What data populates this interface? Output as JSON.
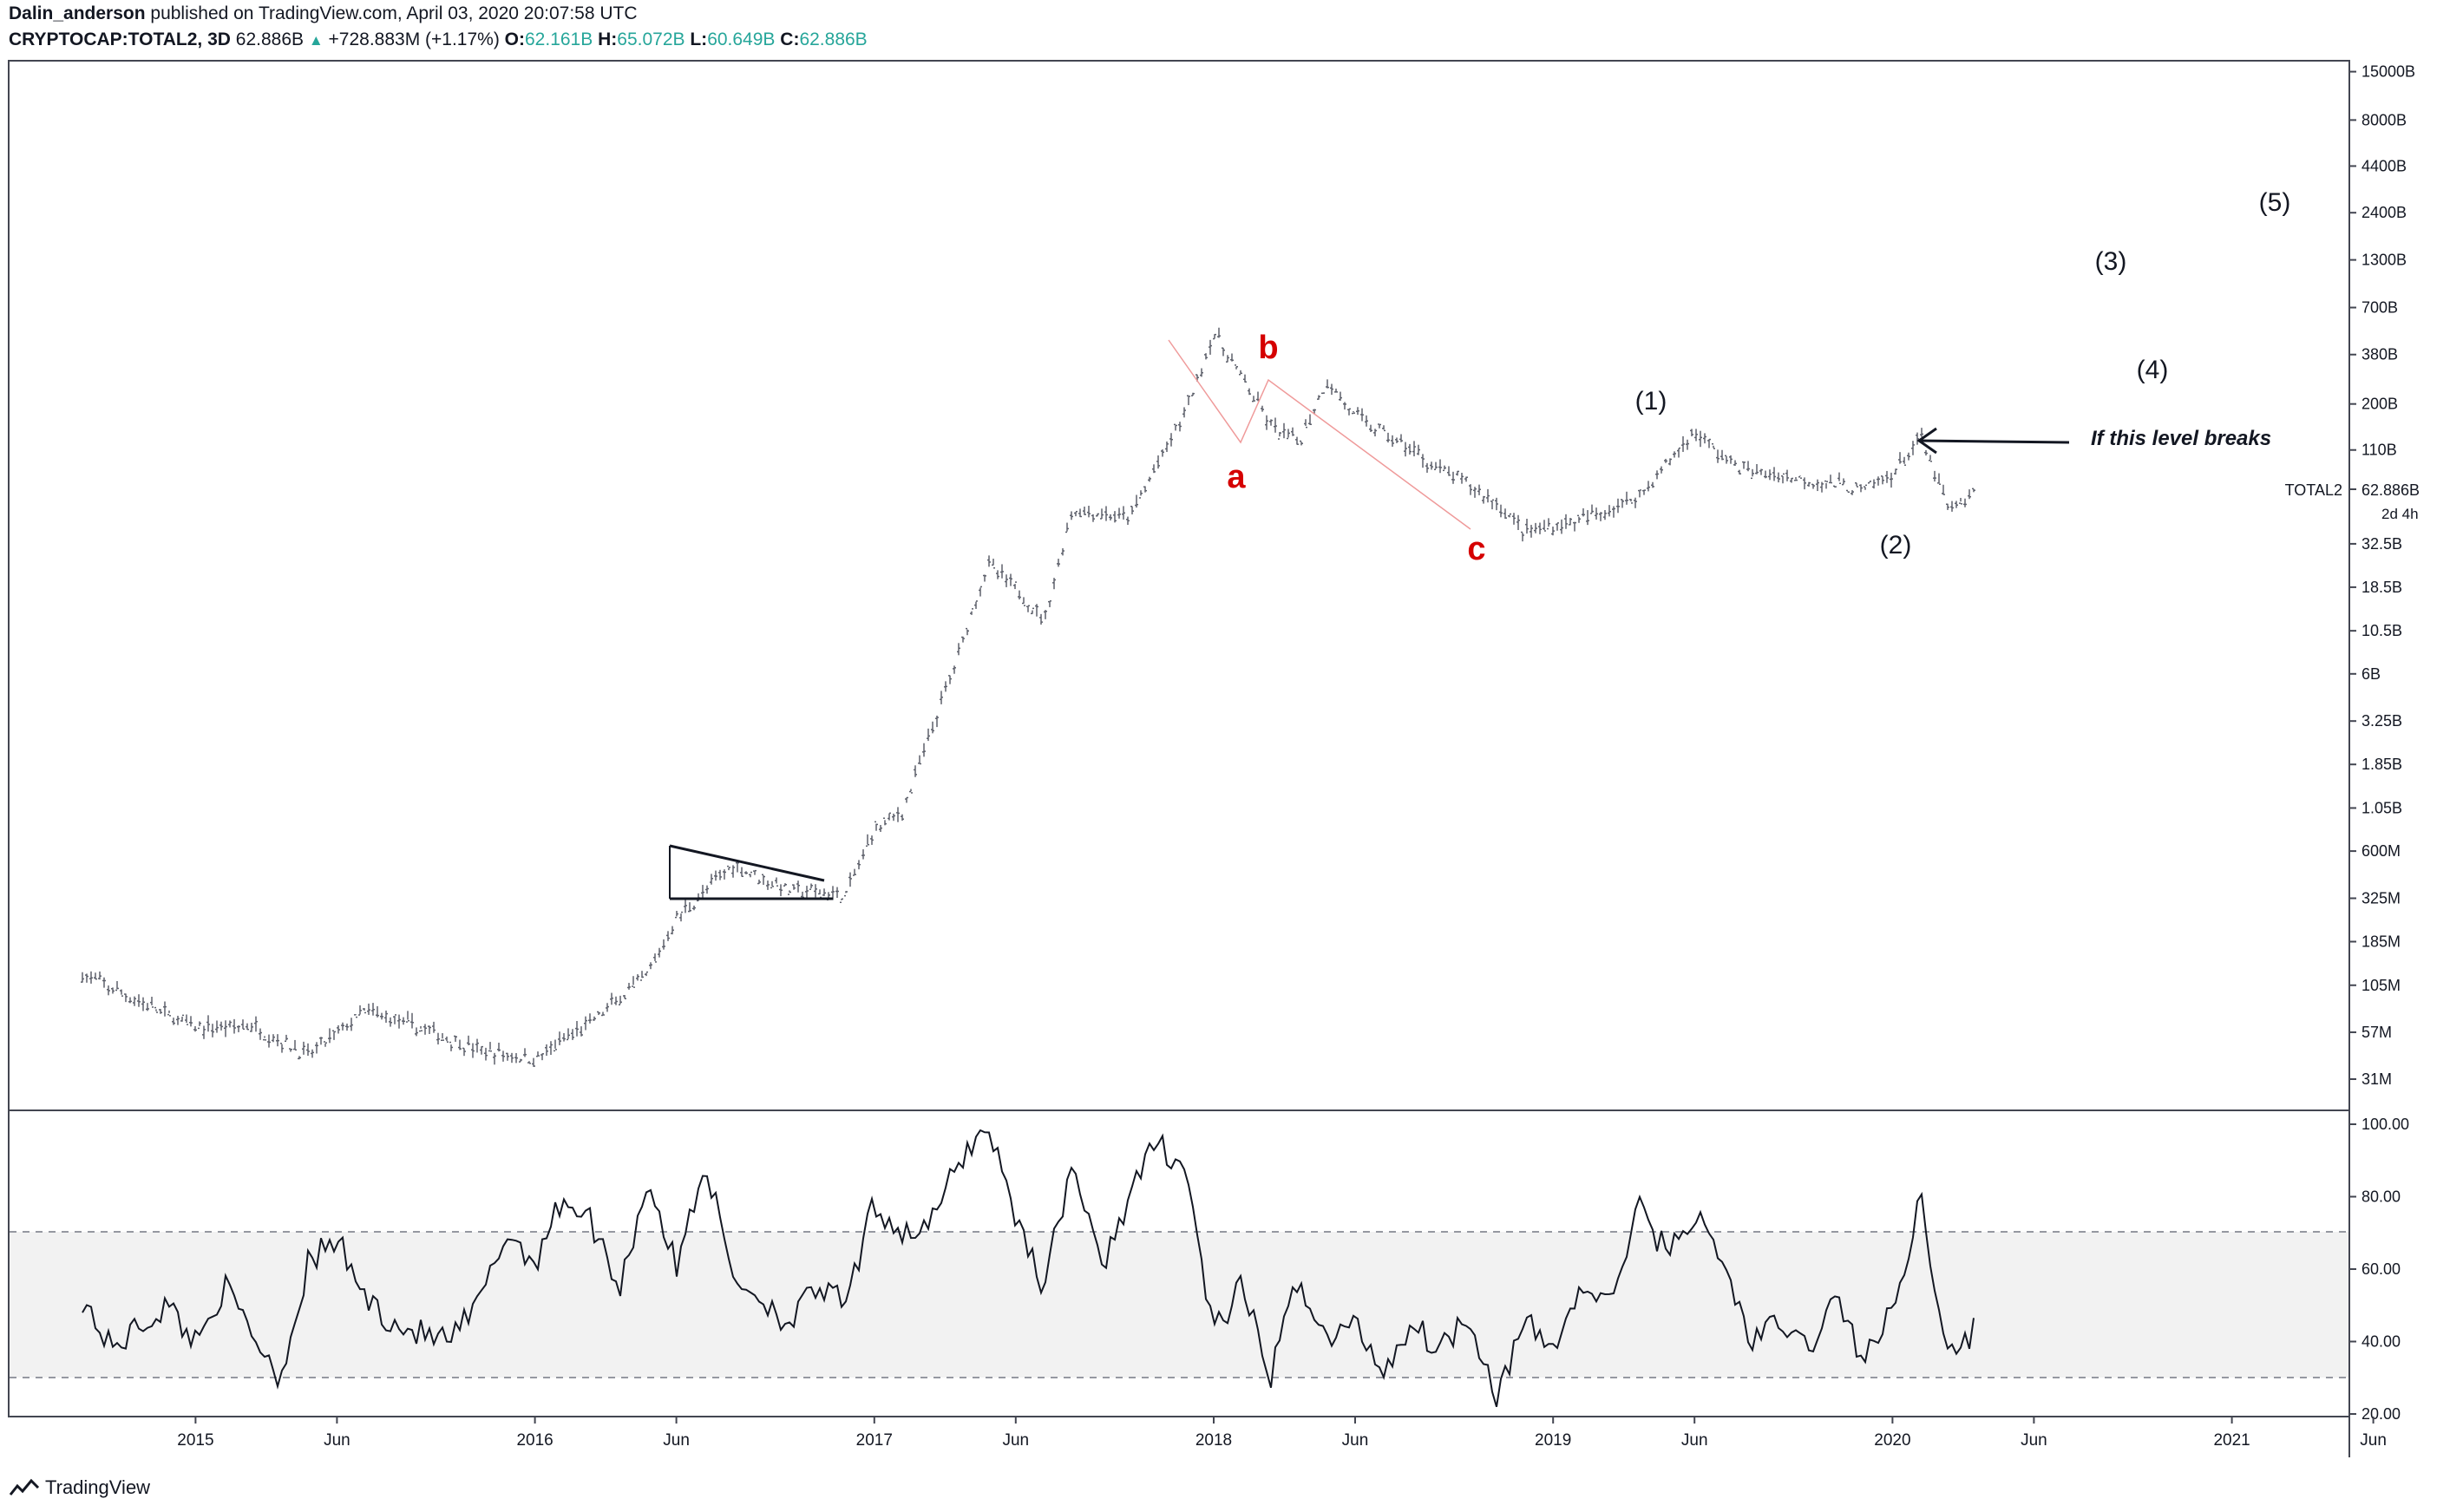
{
  "header": {
    "author": "Dalin_anderson",
    "published_text": "published on TradingView.com, April 03, 2020 20:07:58 UTC",
    "symbol": "CRYPTOCAP:TOTAL2, 3D",
    "last": "62.886B",
    "change": "+728.883M (+1.17%)",
    "o_label": "O:",
    "o": "62.161B",
    "h_label": "H:",
    "h": "65.072B",
    "l_label": "L:",
    "l": "60.649B",
    "c_label": "C:",
    "c": "62.886B"
  },
  "footer": {
    "brand": "TradingView"
  },
  "annotations": {
    "wave_1": "(1)",
    "wave_2": "(2)",
    "wave_3": "(3)",
    "wave_4": "(4)",
    "wave_5": "(5)",
    "corr_a": "a",
    "corr_b": "b",
    "corr_c": "c",
    "note": "If this level breaks"
  },
  "price_label": {
    "symbol": "TOTAL2",
    "value": "62.886B",
    "countdown": "2d 4h"
  },
  "colors": {
    "accent_red": "#d50000",
    "ohlc_green": "#26a69a",
    "text": "#131722",
    "rsi_band": "#f2f2f2"
  },
  "chart_data": [
    {
      "type": "line",
      "name": "price",
      "scale": "log",
      "x_ticks": [
        "2015",
        "Jun",
        "2016",
        "Jun",
        "2017",
        "Jun",
        "2018",
        "Jun",
        "2019",
        "Jun",
        "2020",
        "Jun",
        "2021",
        "Jun"
      ],
      "y_ticks": [
        "15000B",
        "8000B",
        "4400B",
        "2400B",
        "1300B",
        "700B",
        "380B",
        "200B",
        "110B",
        "62.886B",
        "32.5B",
        "18.5B",
        "10.5B",
        "6B",
        "3.25B",
        "1.85B",
        "1.05B",
        "600M",
        "325M",
        "185M",
        "105M",
        "57M",
        "31M"
      ],
      "x": [
        "2014-09",
        "2014-11",
        "2015-01",
        "2015-03",
        "2015-05",
        "2015-07",
        "2015-09",
        "2015-11",
        "2016-01",
        "2016-03",
        "2016-05",
        "2016-06",
        "2016-08",
        "2016-10",
        "2016-12",
        "2017-01",
        "2017-02",
        "2017-03",
        "2017-04",
        "2017-05",
        "2017-06",
        "2017-07",
        "2017-08",
        "2017-10",
        "2017-12",
        "2018-01",
        "2018-02",
        "2018-03",
        "2018-04",
        "2018-05",
        "2018-06",
        "2018-08",
        "2018-09",
        "2018-10",
        "2018-11",
        "2018-12",
        "2019-02",
        "2019-04",
        "2019-05",
        "2019-06",
        "2019-07",
        "2019-08",
        "2019-10",
        "2019-12",
        "2020-01",
        "2020-02",
        "2020-03",
        "2020-04"
      ],
      "values": [
        120,
        85,
        60,
        62,
        42,
        75,
        60,
        45,
        40,
        65,
        120,
        250,
        500,
        360,
        340,
        800,
        1000,
        2800,
        8000,
        25000,
        18000,
        12000,
        50000,
        45000,
        180000,
        500000,
        280000,
        150000,
        120000,
        270000,
        170000,
        110000,
        85000,
        70000,
        55000,
        38000,
        44000,
        60000,
        90000,
        140000,
        100000,
        82000,
        75000,
        65000,
        80000,
        130000,
        50000,
        62886
      ]
    },
    {
      "type": "line",
      "name": "RSI",
      "y_ticks": [
        "100.00",
        "80.00",
        "60.00",
        "40.00",
        "20.00"
      ],
      "ylim": [
        20,
        100
      ],
      "band": [
        30,
        70
      ],
      "x": [
        "2014-09",
        "2014-10",
        "2014-12",
        "2015-01",
        "2015-02",
        "2015-04",
        "2015-05",
        "2015-06",
        "2015-07",
        "2015-08",
        "2015-09",
        "2015-10",
        "2015-11",
        "2015-12",
        "2016-01",
        "2016-02",
        "2016-03",
        "2016-04",
        "2016-05",
        "2016-06",
        "2016-07",
        "2016-08",
        "2016-09",
        "2016-10",
        "2016-11",
        "2016-12",
        "2017-01",
        "2017-02",
        "2017-03",
        "2017-04",
        "2017-05",
        "2017-06",
        "2017-07",
        "2017-08",
        "2017-09",
        "2017-10",
        "2017-11",
        "2017-12",
        "2018-01",
        "2018-02",
        "2018-03",
        "2018-04",
        "2018-05",
        "2018-06",
        "2018-07",
        "2018-08",
        "2018-09",
        "2018-10",
        "2018-11",
        "2018-12",
        "2019-01",
        "2019-02",
        "2019-03",
        "2019-04",
        "2019-05",
        "2019-06",
        "2019-07",
        "2019-08",
        "2019-09",
        "2019-10",
        "2019-11",
        "2019-12",
        "2020-01",
        "2020-02",
        "2020-03",
        "2020-04"
      ],
      "values": [
        52,
        38,
        50,
        40,
        55,
        30,
        62,
        68,
        52,
        45,
        42,
        40,
        50,
        70,
        62,
        80,
        73,
        55,
        85,
        60,
        90,
        58,
        52,
        45,
        55,
        50,
        78,
        70,
        72,
        90,
        100,
        75,
        55,
        90,
        60,
        80,
        95,
        88,
        42,
        55,
        30,
        58,
        40,
        45,
        32,
        45,
        38,
        48,
        25,
        45,
        38,
        55,
        50,
        77,
        65,
        75,
        62,
        40,
        45,
        38,
        52,
        35,
        48,
        80,
        35,
        44
      ]
    }
  ]
}
